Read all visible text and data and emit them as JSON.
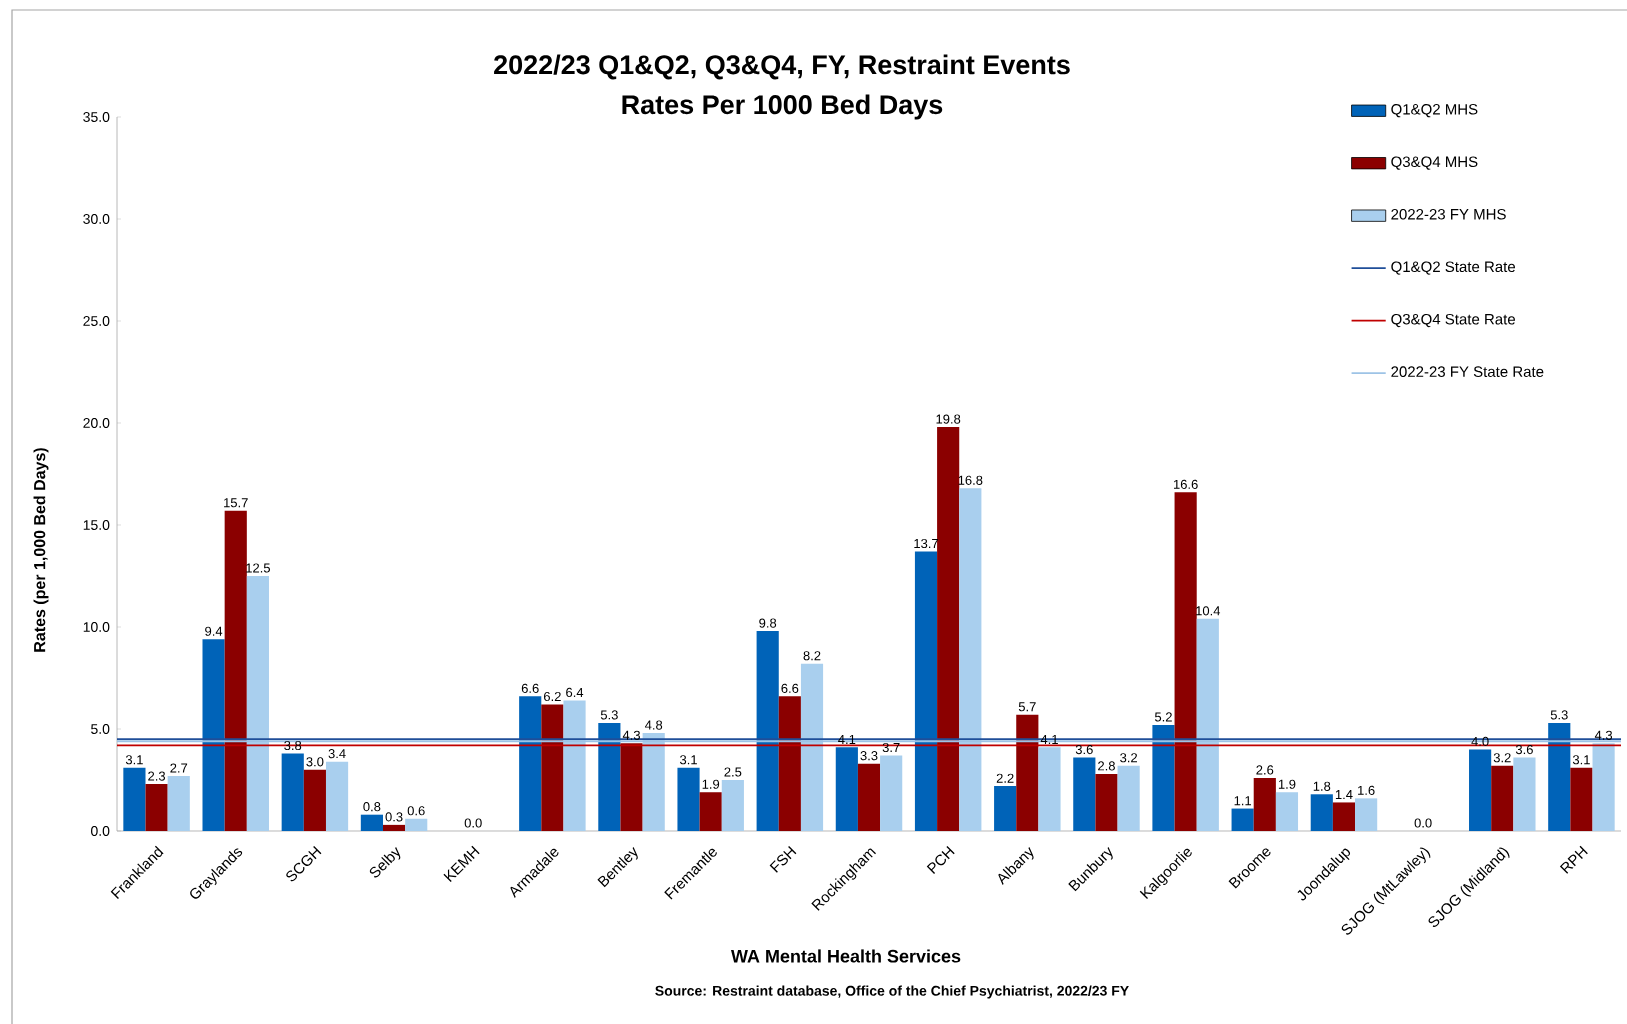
{
  "chart_data": {
    "type": "bar",
    "title": "2022/23 Q1&Q2, Q3&Q4, FY, Restraint Events",
    "subtitle": "Rates Per 1000 Bed Days",
    "xlabel": "WA Mental Health Services",
    "ylabel": "Rates (per 1,000 Bed Days)",
    "annotations": [
      "Source: Restraint database, Office of the Chief Psychiatrist, 2022/23 FY"
    ],
    "categories": [
      "Frankland",
      "Graylands",
      "SCGH",
      "Selby",
      "KEMH",
      "Armadale",
      "Bentley",
      "Fremantle",
      "FSH",
      "Rockingham",
      "PCH",
      "Albany",
      "Bunbury",
      "Kalgoorlie",
      "Broome",
      "Joondalup",
      "SJOG (MtLawley)",
      "SJOG (Midland)",
      "RPH"
    ],
    "series": [
      {
        "name": "Q1&Q2 MHS",
        "color": "#0063b8",
        "values": [
          3.1,
          9.4,
          3.8,
          0.8,
          0,
          6.6,
          5.3,
          3.1,
          9.8,
          4.1,
          13.7,
          2.2,
          3.6,
          5.2,
          1.1,
          1.8,
          0,
          4.0,
          5.3
        ],
        "value_labels": [
          "3.1",
          "9.4",
          "3.8",
          "0.8",
          null,
          "6.6",
          "5.3",
          "3.1",
          "9.8",
          "4.1",
          "13.7",
          "2.2",
          "3.6",
          "5.2",
          "1.1",
          "1.8",
          null,
          "4.0",
          "5.3"
        ]
      },
      {
        "name": "Q3&Q4 MHS",
        "color": "#8b0000",
        "values": [
          2.3,
          15.7,
          3.0,
          0.3,
          0,
          6.2,
          4.3,
          1.9,
          6.6,
          3.3,
          19.8,
          5.7,
          2.8,
          16.6,
          2.6,
          1.4,
          0,
          3.2,
          3.1
        ],
        "value_labels": [
          "2.3",
          "15.7",
          "3.0",
          "0.3",
          "0.0",
          "6.2",
          "4.3",
          "1.9",
          "6.6",
          "3.3",
          "19.8",
          "5.7",
          "2.8",
          "16.6",
          "2.6",
          "1.4",
          "0.0",
          "3.2",
          "3.1"
        ]
      },
      {
        "name": "2022-23 FY MHS",
        "color": "#a9cfee",
        "values": [
          2.7,
          12.5,
          3.4,
          0.6,
          0,
          6.4,
          4.8,
          2.5,
          8.2,
          3.7,
          16.8,
          4.1,
          3.2,
          10.4,
          1.9,
          1.6,
          0,
          3.6,
          4.3
        ],
        "value_labels": [
          "2.7",
          "12.5",
          "3.4",
          "0.6",
          null,
          "6.4",
          "4.8",
          "2.5",
          "8.2",
          "3.7",
          "16.8",
          "4.1",
          "3.2",
          "10.4",
          "1.9",
          "1.6",
          null,
          "3.6",
          "4.3"
        ]
      }
    ],
    "ref_lines": [
      {
        "axis": "y",
        "value": 4.5,
        "label": "Q1&Q2 State Rate",
        "color": "#1f4e99"
      },
      {
        "axis": "y",
        "value": 4.2,
        "label": "Q3&Q4 State Rate",
        "color": "#c00000"
      },
      {
        "axis": "y",
        "value": 4.4,
        "label": "2022-23 FY State Rate",
        "color": "#9dc3e6"
      }
    ],
    "ylim": [
      0,
      35
    ],
    "yticks": [
      {
        "value": 0,
        "label": "0.0"
      },
      {
        "value": 5,
        "label": "5.0"
      },
      {
        "value": 10,
        "label": "10.0"
      },
      {
        "value": 15,
        "label": "15.0"
      },
      {
        "value": 20,
        "label": "20.0"
      },
      {
        "value": 25,
        "label": "25.0"
      },
      {
        "value": 30,
        "label": "30.0"
      },
      {
        "value": 35,
        "label": "35.0"
      }
    ],
    "grid": false,
    "legend": "top right"
  }
}
